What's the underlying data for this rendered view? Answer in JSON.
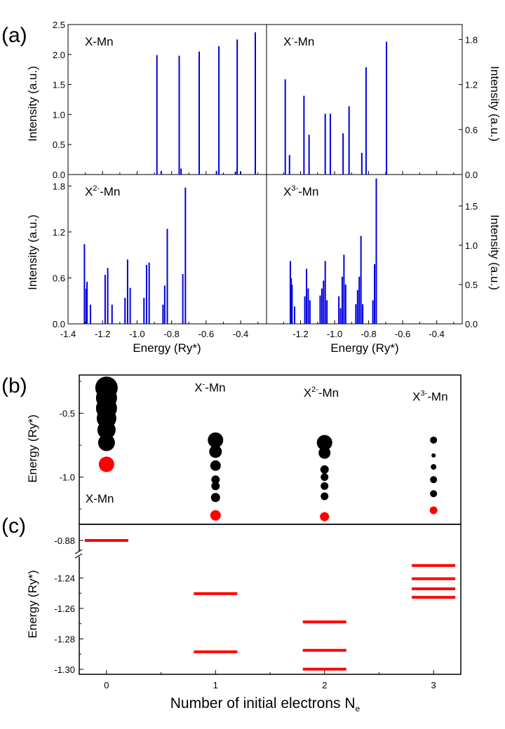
{
  "panel_labels": {
    "a": "(a)",
    "b": "(b)",
    "c": "(c)"
  },
  "colors": {
    "bar": "#0000e0",
    "black": "#000000",
    "red": "#ff0000"
  },
  "chart_data": [
    {
      "id": "a_tl",
      "type": "bar",
      "label": "X-Mn",
      "ylabel": "Intensity (a.u.)",
      "xlim": [
        -1.4,
        -0.25
      ],
      "ylim": [
        0,
        2.5
      ],
      "yticks": [
        "0.0",
        "0.5",
        "1.0",
        "1.5",
        "2.0",
        "2.5"
      ],
      "yticks_v": [
        0,
        0.5,
        1,
        1.5,
        2,
        2.5
      ],
      "peaks": [
        [
          -0.885,
          1.99
        ],
        [
          -0.86,
          0.06
        ],
        [
          -0.756,
          1.98
        ],
        [
          -0.745,
          0.1
        ],
        [
          -0.64,
          2.05
        ],
        [
          -0.54,
          0.06
        ],
        [
          -0.526,
          2.14
        ],
        [
          -0.43,
          0.05
        ],
        [
          -0.42,
          2.25
        ],
        [
          -0.4,
          0.05
        ],
        [
          -0.315,
          2.37
        ]
      ]
    },
    {
      "id": "a_tr",
      "type": "bar",
      "label": "X-Mn",
      "label_sup": "-",
      "ylabel": "Intensity (a.u.)",
      "xlim": [
        -1.4,
        -0.25
      ],
      "ylim": [
        0,
        2.0
      ],
      "yticks": [
        "0.0",
        "0.6",
        "1.2",
        "1.8"
      ],
      "yticks_v": [
        0,
        0.6,
        1.2,
        1.8
      ],
      "peaks": [
        [
          -1.29,
          1.27
        ],
        [
          -1.265,
          0.26
        ],
        [
          -1.18,
          1.05
        ],
        [
          -1.15,
          0.53
        ],
        [
          -1.055,
          0.81
        ],
        [
          -1.025,
          0.81
        ],
        [
          -0.95,
          0.55
        ],
        [
          -0.915,
          0.91
        ],
        [
          -0.84,
          0.29
        ],
        [
          -0.815,
          1.43
        ],
        [
          -0.695,
          1.77
        ]
      ]
    },
    {
      "id": "a_bl",
      "type": "bar",
      "label": "X-Mn",
      "label_sup": "2-",
      "ylabel": "Intensity (a.u.)",
      "xlim": [
        -1.4,
        -0.25
      ],
      "ylim": [
        0,
        1.95
      ],
      "yticks": [
        "0.0",
        "0.6",
        "1.2",
        "1.8"
      ],
      "yticks_v": [
        0,
        0.6,
        1.2,
        1.8
      ],
      "xlabel": "Energy (Ry*)",
      "xticks": [
        "-1.4",
        "-1.2",
        "-1.0",
        "-0.8",
        "-0.6",
        "-0.4"
      ],
      "xticks_v": [
        -1.4,
        -1.2,
        -1.0,
        -0.8,
        -0.6,
        -0.4
      ],
      "peaks": [
        [
          -1.305,
          1.04
        ],
        [
          -1.295,
          0.46
        ],
        [
          -1.29,
          0.55
        ],
        [
          -1.27,
          0.25
        ],
        [
          -1.185,
          0.64
        ],
        [
          -1.17,
          0.73
        ],
        [
          -1.145,
          0.25
        ],
        [
          -1.07,
          0.34
        ],
        [
          -1.055,
          0.84
        ],
        [
          -1.04,
          0.47
        ],
        [
          -0.96,
          0.34
        ],
        [
          -0.945,
          0.77
        ],
        [
          -0.93,
          0.8
        ],
        [
          -0.85,
          0.25
        ],
        [
          -0.84,
          0.5
        ],
        [
          -0.825,
          1.24
        ],
        [
          -0.735,
          0.65
        ],
        [
          -0.72,
          1.78
        ]
      ]
    },
    {
      "id": "a_br",
      "type": "bar",
      "label": "X-Mn",
      "label_sup": "3-",
      "ylabel": "Intensity (a.u.)",
      "xlim": [
        -1.4,
        -0.25
      ],
      "ylim": [
        0,
        1.9
      ],
      "yticks": [
        "0.0",
        "0.5",
        "1.0",
        "1.5"
      ],
      "yticks_v": [
        0,
        0.5,
        1,
        1.5
      ],
      "xlabel": "Energy (Ry*)",
      "xticks": [
        "-1.2",
        "-1.0",
        "-0.8",
        "-0.6",
        "-0.4"
      ],
      "xticks_v": [
        -1.2,
        -1.0,
        -0.8,
        -0.6,
        -0.4
      ],
      "peaks": [
        [
          -1.26,
          0.8
        ],
        [
          -1.255,
          0.58
        ],
        [
          -1.25,
          0.5
        ],
        [
          -1.235,
          0.22
        ],
        [
          -1.175,
          0.35
        ],
        [
          -1.165,
          0.7
        ],
        [
          -1.155,
          0.45
        ],
        [
          -1.145,
          0.3
        ],
        [
          -1.085,
          0.36
        ],
        [
          -1.075,
          0.45
        ],
        [
          -1.065,
          0.55
        ],
        [
          -1.055,
          0.8
        ],
        [
          -1.045,
          0.3
        ],
        [
          -0.975,
          0.35
        ],
        [
          -0.965,
          0.2
        ],
        [
          -0.955,
          0.6
        ],
        [
          -0.945,
          0.88
        ],
        [
          -0.935,
          0.5
        ],
        [
          -0.875,
          0.25
        ],
        [
          -0.865,
          0.43
        ],
        [
          -0.855,
          0.6
        ],
        [
          -0.845,
          1.12
        ],
        [
          -0.835,
          0.25
        ],
        [
          -0.775,
          0.3
        ],
        [
          -0.765,
          0.76
        ],
        [
          -0.755,
          1.85
        ]
      ]
    },
    {
      "id": "b",
      "type": "scatter",
      "ylabel": "Energy (Ry*)",
      "xlim": [
        -0.25,
        3.25
      ],
      "ylim": [
        -1.37,
        -0.2
      ],
      "yticks": [
        "-0.5",
        "-1.0"
      ],
      "yticks_v": [
        -0.5,
        -1.0
      ],
      "groups": [
        {
          "x": 0,
          "label": "X-Mn",
          "black": [
            [
              -0.3,
              16
            ],
            [
              -0.38,
              15
            ],
            [
              -0.46,
              15
            ],
            [
              -0.54,
              14
            ],
            [
              -0.63,
              13
            ],
            [
              -0.73,
              12
            ]
          ],
          "red": [
            [
              -0.9,
              11
            ]
          ]
        },
        {
          "x": 1,
          "label": "X-Mn",
          "label_sup": "-",
          "black": [
            [
              -0.71,
              11
            ],
            [
              -0.8,
              9
            ],
            [
              -0.91,
              7.5
            ],
            [
              -1.02,
              6
            ],
            [
              -1.07,
              6
            ],
            [
              -1.16,
              6.5
            ]
          ],
          "red": [
            [
              -1.3,
              7.5
            ]
          ]
        },
        {
          "x": 2,
          "label": "X-Mn",
          "label_sup": "2-",
          "black": [
            [
              -0.73,
              11
            ],
            [
              -0.81,
              8.5
            ],
            [
              -0.94,
              6
            ],
            [
              -1.0,
              5.5
            ],
            [
              -1.07,
              5.5
            ],
            [
              -1.15,
              5.5
            ]
          ],
          "red": [
            [
              -1.31,
              6.5
            ]
          ]
        },
        {
          "x": 3,
          "label": "X-Mn",
          "label_sup": "3-",
          "black": [
            [
              -0.71,
              5
            ],
            [
              -0.83,
              3
            ],
            [
              -0.92,
              4
            ],
            [
              -1.02,
              5
            ],
            [
              -1.13,
              5
            ]
          ],
          "red": [
            [
              -1.26,
              5.5
            ]
          ]
        }
      ]
    },
    {
      "id": "c",
      "type": "levels",
      "ylabel": "Energy (Ry*)",
      "xlabel": "Number of initial electrons N",
      "xlabel_sub": "e",
      "xlim": [
        -0.25,
        3.25
      ],
      "break_value": -0.88,
      "ylim_low": [
        -1.301,
        -1.225
      ],
      "xticks": [
        "0",
        "1",
        "2",
        "3"
      ],
      "xticks_v": [
        0,
        1,
        2,
        3
      ],
      "yticks": [
        "-0.88",
        "-1.24",
        "-1.26",
        "-1.28",
        "-1.30"
      ],
      "yticks_v": [
        -0.88,
        -1.24,
        -1.26,
        -1.28,
        -1.3
      ],
      "levels": [
        {
          "x": 0,
          "e": [
            -0.88
          ]
        },
        {
          "x": 1,
          "e": [
            -1.2503,
            -1.2885
          ]
        },
        {
          "x": 2,
          "e": [
            -1.2689,
            -1.2875,
            -1.2999
          ]
        },
        {
          "x": 3,
          "e": [
            -1.2318,
            -1.2405,
            -1.2471,
            -1.2527
          ]
        }
      ]
    }
  ]
}
